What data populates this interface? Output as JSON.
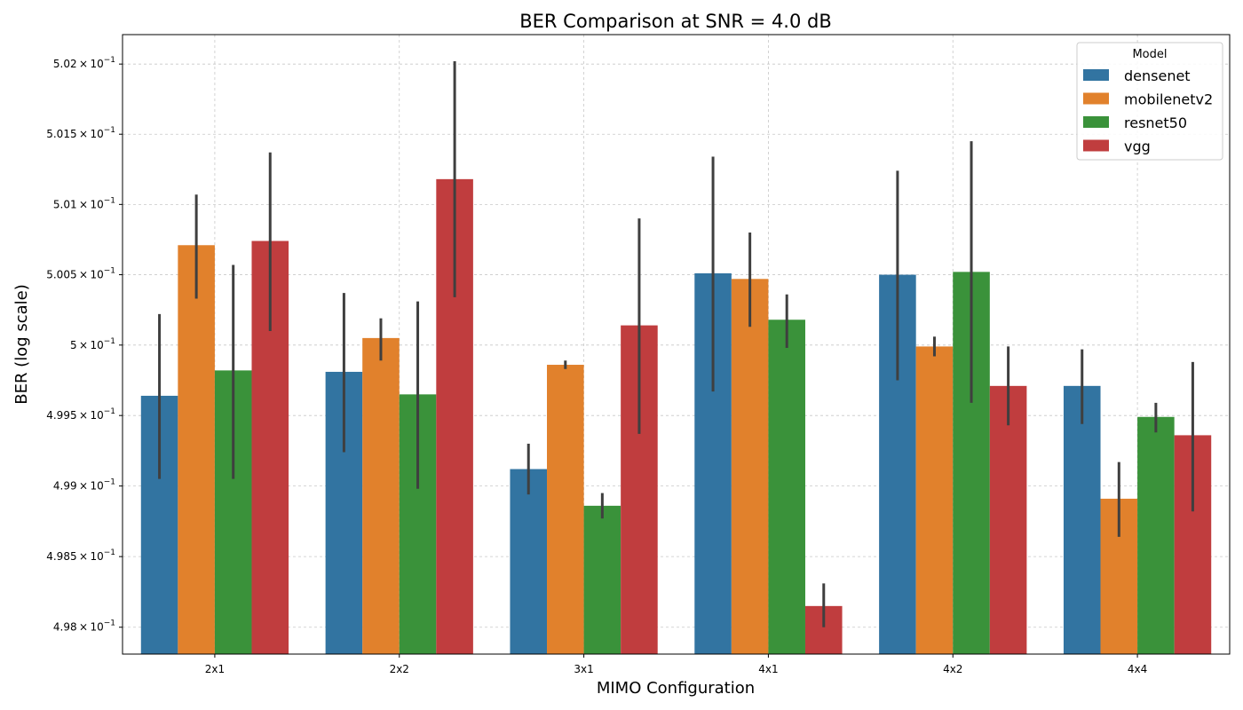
{
  "chart_data": {
    "type": "bar",
    "title": "BER Comparison at SNR = 4.0 dB",
    "xlabel": "MIMO Configuration",
    "ylabel": "BER (log scale)",
    "yscale": "log",
    "ylim": [
      0.49781,
      0.50221
    ],
    "grid": true,
    "legend": {
      "title": "Model",
      "placement": "top-right"
    },
    "yticks": [
      {
        "value": 0.498,
        "mantissa": "4.98",
        "exp": "−1"
      },
      {
        "value": 0.4985,
        "mantissa": "4.985",
        "exp": "−1"
      },
      {
        "value": 0.499,
        "mantissa": "4.99",
        "exp": "−1"
      },
      {
        "value": 0.4995,
        "mantissa": "4.995",
        "exp": "−1"
      },
      {
        "value": 0.5,
        "mantissa": "5",
        "exp": "−1"
      },
      {
        "value": 0.5005,
        "mantissa": "5.005",
        "exp": "−1"
      },
      {
        "value": 0.501,
        "mantissa": "5.01",
        "exp": "−1"
      },
      {
        "value": 0.5015,
        "mantissa": "5.015",
        "exp": "−1"
      },
      {
        "value": 0.502,
        "mantissa": "5.02",
        "exp": "−1"
      }
    ],
    "categories": [
      "2x1",
      "2x2",
      "3x1",
      "4x1",
      "4x2",
      "4x4"
    ],
    "series": [
      {
        "name": "densenet",
        "color": "#3274a1",
        "values": [
          0.49964,
          0.49981,
          0.49912,
          0.50051,
          0.5005,
          0.49971
        ],
        "err_low": [
          0.49905,
          0.49924,
          0.49894,
          0.49967,
          0.49975,
          0.49944
        ],
        "err_high": [
          0.50022,
          0.50037,
          0.4993,
          0.50134,
          0.50124,
          0.49997
        ]
      },
      {
        "name": "mobilenetv2",
        "color": "#e1812c",
        "values": [
          0.50071,
          0.50005,
          0.49986,
          0.50047,
          0.49999,
          0.49891
        ],
        "err_low": [
          0.50033,
          0.49989,
          0.49983,
          0.50013,
          0.49992,
          0.49864
        ],
        "err_high": [
          0.50107,
          0.50019,
          0.49989,
          0.5008,
          0.50006,
          0.49917
        ]
      },
      {
        "name": "resnet50",
        "color": "#3a923a",
        "values": [
          0.49982,
          0.49965,
          0.49886,
          0.50018,
          0.50052,
          0.49949
        ],
        "err_low": [
          0.49905,
          0.49898,
          0.49877,
          0.49998,
          0.49959,
          0.49938
        ],
        "err_high": [
          0.50057,
          0.50031,
          0.49895,
          0.50036,
          0.50145,
          0.49959
        ]
      },
      {
        "name": "vgg",
        "color": "#c03d3e",
        "values": [
          0.50074,
          0.50118,
          0.50014,
          0.49815,
          0.49971,
          0.49936
        ],
        "err_low": [
          0.5001,
          0.50034,
          0.49937,
          0.498,
          0.49943,
          0.49882
        ],
        "err_high": [
          0.50137,
          0.50202,
          0.5009,
          0.49831,
          0.49999,
          0.49988
        ]
      }
    ]
  }
}
